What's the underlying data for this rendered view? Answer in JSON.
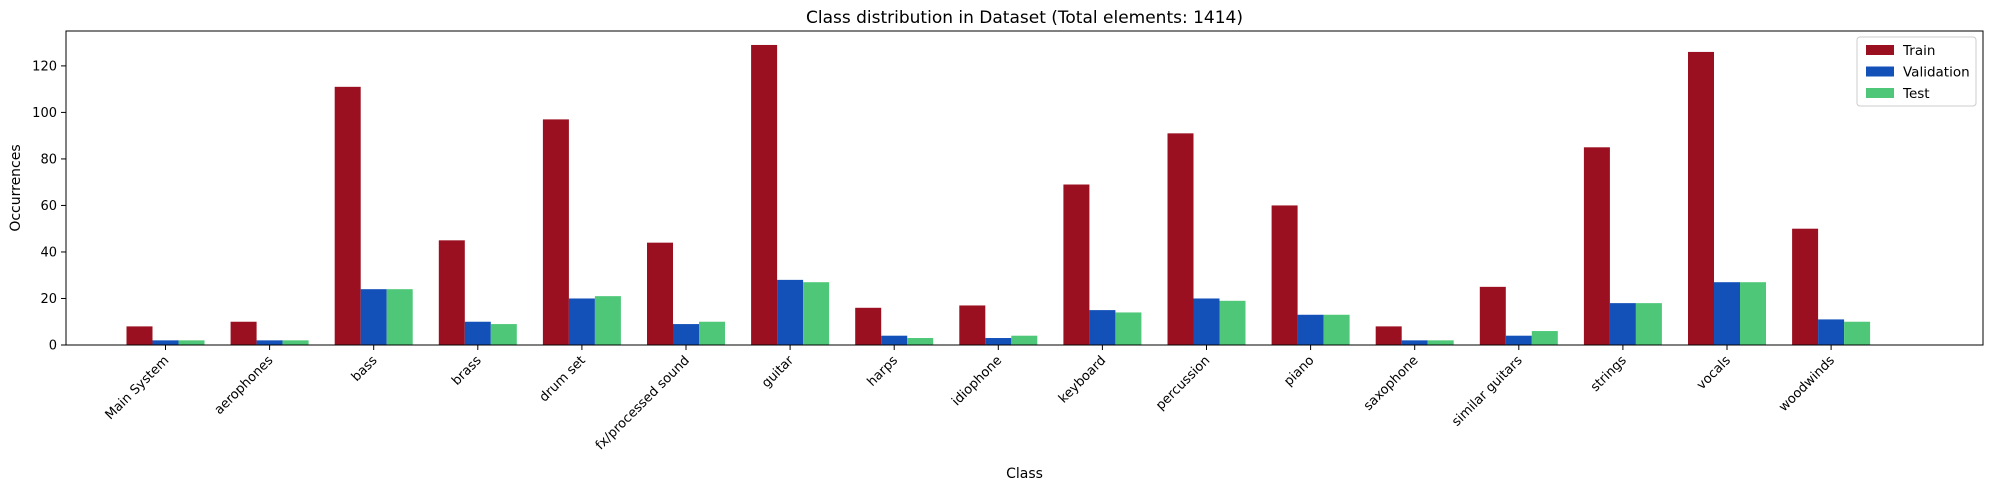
{
  "chart_data": {
    "type": "bar",
    "title": "Class distribution in Dataset (Total elements: 1414)",
    "xlabel": "Class",
    "ylabel": "Occurrences",
    "ylim": [
      0,
      135
    ],
    "yticks": [
      0,
      20,
      40,
      60,
      80,
      100,
      120
    ],
    "grid": false,
    "legend_position": "top-right",
    "categories": [
      "Main System",
      "aerophones",
      "bass",
      "brass",
      "drum set",
      "fx/processed sound",
      "guitar",
      "harps",
      "idiophone",
      "keyboard",
      "percussion",
      "piano",
      "saxophone",
      "similar guitars",
      "strings",
      "vocals",
      "woodwinds"
    ],
    "series": [
      {
        "name": "Train",
        "color": "#9b1020",
        "values": [
          8,
          10,
          111,
          45,
          97,
          44,
          129,
          16,
          17,
          69,
          91,
          60,
          8,
          25,
          85,
          126,
          50
        ]
      },
      {
        "name": "Validation",
        "color": "#1350b8",
        "values": [
          2,
          2,
          24,
          10,
          20,
          9,
          28,
          4,
          3,
          15,
          20,
          13,
          2,
          4,
          18,
          27,
          11
        ]
      },
      {
        "name": "Test",
        "color": "#4ec878",
        "values": [
          2,
          2,
          24,
          9,
          21,
          10,
          27,
          3,
          4,
          14,
          19,
          13,
          2,
          6,
          18,
          27,
          10
        ]
      }
    ]
  }
}
